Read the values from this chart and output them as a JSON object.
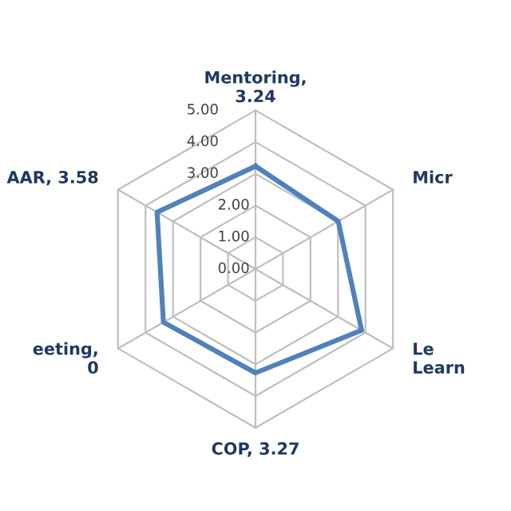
{
  "chart_data": {
    "type": "radar",
    "categories": [
      "Mentoring,\n3.24",
      "Micr",
      "Le\nLearn",
      "COP, 3.27",
      "eeting,\n0",
      "AAR, 3.58"
    ],
    "series": [
      {
        "color": "#4f81bd",
        "values": [
          3.24,
          3.01,
          3.86,
          3.27,
          3.35,
          3.58
        ]
      }
    ],
    "ylim": [
      0,
      5
    ],
    "yticks": [
      {
        "value": 0,
        "label": "0.00"
      },
      {
        "value": 1,
        "label": "1.00"
      },
      {
        "value": 2,
        "label": "2.00"
      },
      {
        "value": 3,
        "label": "3.00"
      },
      {
        "value": 4,
        "label": "4.00"
      },
      {
        "value": 5,
        "label": "5.00"
      }
    ],
    "grid": true
  }
}
